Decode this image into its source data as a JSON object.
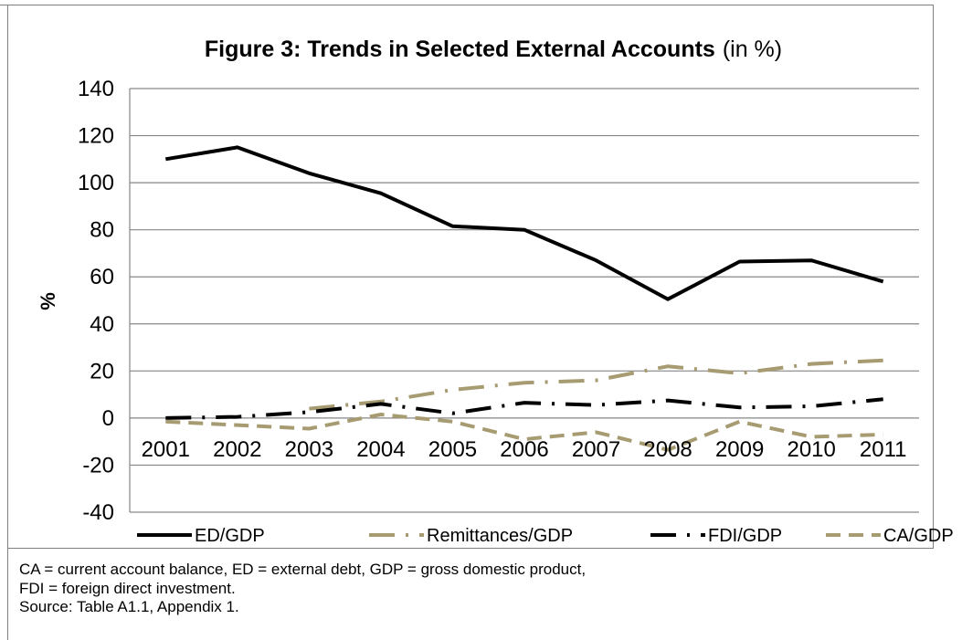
{
  "chart_data": {
    "type": "line",
    "title": "Figure 3: Trends in Selected External Accounts",
    "title_suffix": "(in %)",
    "xlabel": "",
    "ylabel": "%",
    "categories": [
      "2001",
      "2002",
      "2003",
      "2004",
      "2005",
      "2006",
      "2007",
      "2008",
      "2009",
      "2010",
      "2011"
    ],
    "ylim": [
      -40,
      140
    ],
    "yticks": [
      -40,
      -20,
      0,
      20,
      40,
      60,
      80,
      100,
      120,
      140
    ],
    "grid": true,
    "legend_position": "bottom",
    "series": [
      {
        "name": "ED/GDP",
        "color": "#000000",
        "dash": "solid",
        "values": [
          110,
          115,
          104,
          95.5,
          81.5,
          80,
          67,
          50.5,
          66.5,
          67,
          58
        ]
      },
      {
        "name": "Remittances/GDP",
        "color": "#a79b72",
        "dash": "long-dash-dot",
        "values": [
          null,
          null,
          4,
          7,
          12,
          15,
          16,
          22,
          19,
          23,
          24.5
        ]
      },
      {
        "name": "FDI/GDP",
        "color": "#000000",
        "dash": "long-dash-dot",
        "values": [
          0,
          0.5,
          2.5,
          6,
          2,
          6.5,
          5.5,
          7.5,
          4.5,
          5,
          8
        ]
      },
      {
        "name": "CA/GDP",
        "color": "#a79b72",
        "dash": "dash",
        "values": [
          -1.5,
          -3,
          -4.5,
          1.5,
          -1.5,
          -9,
          -6,
          -13.5,
          -1.5,
          -8,
          -7
        ]
      }
    ]
  },
  "notes": [
    "CA = current account balance, ED = external debt, GDP = gross domestic product,",
    "FDI = foreign direct investment.",
    "Source: Table A1.1, Appendix 1."
  ]
}
